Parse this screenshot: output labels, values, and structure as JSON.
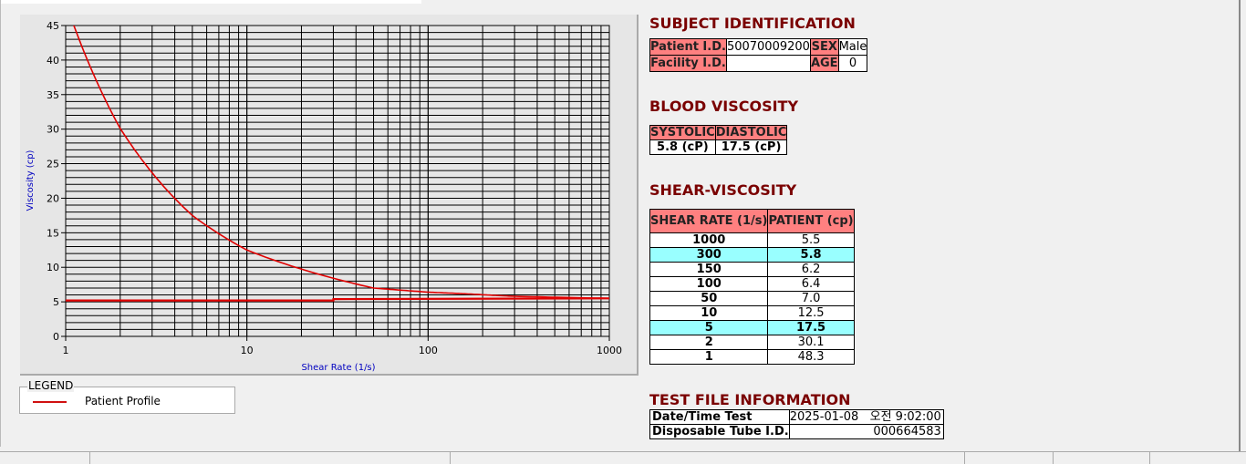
{
  "chart": {
    "legend_title": "LEGEND",
    "legend_label": "Patient Profile",
    "series_color": "#e00000",
    "chart_data": {
      "type": "line",
      "xlabel": "Shear Rate (1/s)",
      "ylabel": "Viscosity (cp)",
      "x_scale": "log",
      "xlim": [
        1,
        1000
      ],
      "ylim": [
        0,
        45
      ],
      "x_ticks": [
        "1",
        "10",
        "100",
        "1000"
      ],
      "y_ticks": [
        "0",
        "5",
        "10",
        "15",
        "20",
        "25",
        "30",
        "35",
        "40",
        "45"
      ],
      "grid": true,
      "legend_position": "below",
      "series": [
        {
          "name": "Patient Profile",
          "x": [
            1,
            2,
            5,
            10,
            50,
            100,
            150,
            300,
            1000
          ],
          "y": [
            48.3,
            30.1,
            17.5,
            12.5,
            7.0,
            6.4,
            6.2,
            5.8,
            5.5
          ]
        },
        {
          "x": [
            1,
            30,
            30,
            1000
          ],
          "y": [
            5.2,
            5.2,
            5.4,
            5.5
          ]
        }
      ]
    }
  },
  "subject": {
    "title": "SUBJECT IDENTIFICATION",
    "patient_id_label": "Patient I.D.",
    "patient_id": "50070009200",
    "sex_label": "SEX",
    "sex": "Male",
    "facility_id_label": "Facility I.D.",
    "facility_id": "",
    "age_label": "AGE",
    "age": "0"
  },
  "blood": {
    "title": "BLOOD VISCOSITY",
    "systolic_label": "SYSTOLIC",
    "diastolic_label": "DIASTOLIC",
    "systolic": "5.8 (cP)",
    "diastolic": "17.5 (cP)"
  },
  "shear": {
    "title": "SHEAR-VISCOSITY",
    "col1": "SHEAR RATE (1/s)",
    "col2": "PATIENT (cp)",
    "highlight_color": "#99ffff",
    "rows": [
      {
        "rate": "1000",
        "value": "5.5",
        "hl": false
      },
      {
        "rate": "300",
        "value": "5.8",
        "hl": true
      },
      {
        "rate": "150",
        "value": "6.2",
        "hl": false
      },
      {
        "rate": "100",
        "value": "6.4",
        "hl": false
      },
      {
        "rate": "50",
        "value": "7.0",
        "hl": false
      },
      {
        "rate": "10",
        "value": "12.5",
        "hl": false
      },
      {
        "rate": "5",
        "value": "17.5",
        "hl": true
      },
      {
        "rate": "2",
        "value": "30.1",
        "hl": false
      },
      {
        "rate": "1",
        "value": "48.3",
        "hl": false
      }
    ]
  },
  "testfile": {
    "title": "TEST FILE INFORMATION",
    "datetime_label": "Date/Time Test",
    "datetime": "2025-01-08   오전 9:02:00",
    "tube_label": "Disposable Tube I.D.",
    "tube_id": "000664583"
  }
}
